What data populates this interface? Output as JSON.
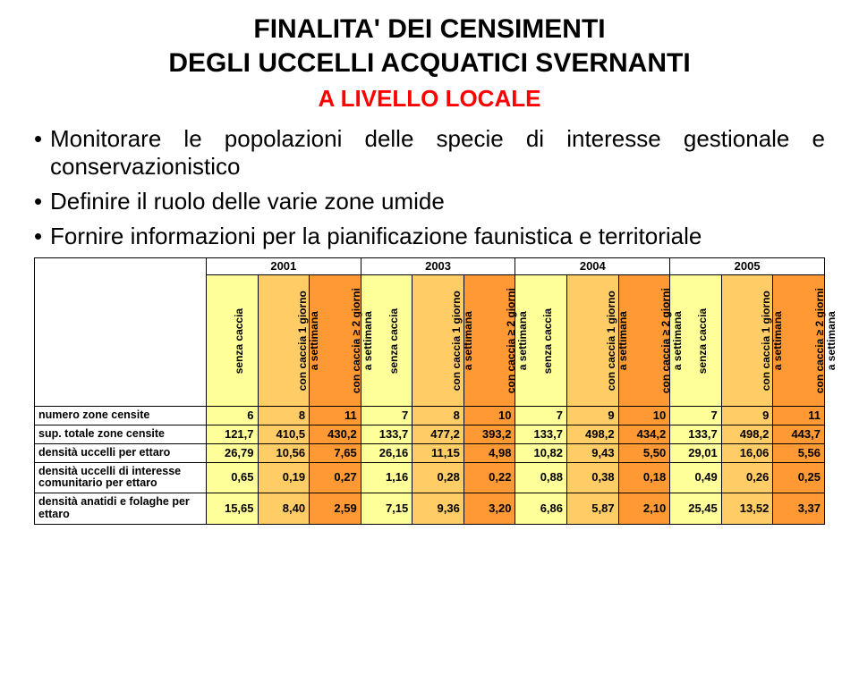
{
  "title": {
    "line1": "FINALITA' DEI CENSIMENTI",
    "line2": "DEGLI UCCELLI ACQUATICI SVERNANTI",
    "subtitle": "A LIVELLO LOCALE",
    "title_fontsize": 30,
    "subtitle_fontsize": 26,
    "title_color": "#000000",
    "subtitle_color": "#ff0000"
  },
  "bullets": {
    "items": [
      "Monitorare le popolazioni delle specie di interesse gestionale e conservazionistico",
      "Definire il ruolo delle varie zone umide",
      "Fornire informazioni per la pianificazione faunistica e territoriale"
    ],
    "fontsize": 26,
    "color": "#000000"
  },
  "table": {
    "years": [
      "2001",
      "2003",
      "2004",
      "2005"
    ],
    "subheads": {
      "senza": "senza caccia",
      "g1a": "con caccia 1 giorno",
      "g1b": "a settimana",
      "g2a": "con caccia ≥ 2 giorni",
      "g2b": "a settimana"
    },
    "colors": {
      "senza_bg": "#ffff99",
      "g1_bg": "#ffcc66",
      "g2_bg": "#ff9933",
      "row_alt": "#ffffff",
      "border": "#000000"
    },
    "rows": [
      {
        "label": "numero zone censite",
        "values": [
          "6",
          "8",
          "11",
          "7",
          "8",
          "10",
          "7",
          "9",
          "10",
          "7",
          "9",
          "11"
        ]
      },
      {
        "label": "sup. totale zone censite",
        "values": [
          "121,7",
          "410,5",
          "430,2",
          "133,7",
          "477,2",
          "393,2",
          "133,7",
          "498,2",
          "434,2",
          "133,7",
          "498,2",
          "443,7"
        ]
      },
      {
        "label": "densità uccelli  per ettaro",
        "values": [
          "26,79",
          "10,56",
          "7,65",
          "26,16",
          "11,15",
          "4,98",
          "10,82",
          "9,43",
          "5,50",
          "29,01",
          "16,06",
          "5,56"
        ]
      },
      {
        "label": "densità uccelli di interesse comunitario per ettaro",
        "values": [
          "0,65",
          "0,19",
          "0,27",
          "1,16",
          "0,28",
          "0,22",
          "0,88",
          "0,38",
          "0,18",
          "0,49",
          "0,26",
          "0,25"
        ]
      },
      {
        "label": "densità anatidi e folaghe per ettaro",
        "values": [
          "15,65",
          "8,40",
          "2,59",
          "7,15",
          "9,36",
          "3,20",
          "6,86",
          "5,87",
          "2,10",
          "25,45",
          "13,52",
          "3,37"
        ]
      }
    ]
  }
}
